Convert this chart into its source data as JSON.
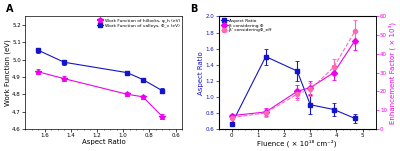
{
  "panel_a": {
    "xlabel": "Aspect Ratio",
    "ylabel": "Work Function (eV)",
    "xlim": [
      1.75,
      0.55
    ],
    "ylim": [
      4.6,
      5.25
    ],
    "xticks": [
      1.6,
      1.4,
      1.2,
      1.0,
      0.8,
      0.6
    ],
    "yticks": [
      4.6,
      4.7,
      4.8,
      4.9,
      5.0,
      5.1,
      5.2
    ],
    "hillocks_x": [
      1.65,
      1.45,
      0.97,
      0.85,
      0.7
    ],
    "hillocks_y": [
      4.93,
      4.89,
      4.8,
      4.785,
      4.67
    ],
    "hillocks_yerr": [
      0.015,
      0.015,
      0.012,
      0.01,
      0.015
    ],
    "valleys_x": [
      1.65,
      1.45,
      0.97,
      0.85,
      0.7
    ],
    "valleys_y": [
      5.055,
      4.985,
      4.925,
      4.885,
      4.82
    ],
    "valleys_yerr": [
      0.015,
      0.015,
      0.01,
      0.01,
      0.015
    ],
    "hillocks_label": "Work Function of hillocks, φ_h (eV)",
    "valleys_label": "Work Function of valleys, Φ_v (eV)",
    "hillocks_color": "#EE00EE",
    "valleys_color": "#1414C8",
    "panel_label": "A"
  },
  "panel_b": {
    "xlabel": "Fluence ( × 10¹⁸ cm⁻²)",
    "ylabel_left": "Aspect Ratio",
    "ylabel_right": "Enhancement Factor ( × 10³)",
    "xlim": [
      -0.5,
      5.5
    ],
    "ylim_left": [
      0.6,
      2.0
    ],
    "ylim_right": [
      0,
      60
    ],
    "xticks": [
      0.0,
      1.0,
      2.0,
      3.0,
      4.0,
      5.0
    ],
    "yticks_left": [
      0.6,
      0.8,
      1.0,
      1.2,
      1.4,
      1.6,
      1.8,
      2.0
    ],
    "yticks_right": [
      0,
      10,
      20,
      30,
      40,
      50,
      60
    ],
    "aspect_x": [
      0.0,
      1.3,
      2.5,
      3.0,
      3.9,
      4.7
    ],
    "aspect_y": [
      0.66,
      1.5,
      1.32,
      0.9,
      0.84,
      0.73
    ],
    "aspect_yerr": [
      0.03,
      0.1,
      0.13,
      0.12,
      0.08,
      0.06
    ],
    "beta_phi_x": [
      0.0,
      1.3,
      2.5,
      3.0,
      3.9,
      4.7
    ],
    "beta_phi_y": [
      7.0,
      9.0,
      20.0,
      22.0,
      30.0,
      47.0
    ],
    "beta_phi_yerr": [
      1.0,
      2.0,
      3.5,
      3.5,
      4.0,
      5.0
    ],
    "beta_phieff_x": [
      0.0,
      1.3,
      2.5,
      3.0,
      3.9,
      4.7
    ],
    "beta_phieff_y": [
      6.0,
      8.5,
      18.5,
      21.0,
      33.0,
      52.0
    ],
    "beta_phieff_yerr": [
      1.0,
      2.0,
      3.0,
      3.5,
      4.5,
      6.0
    ],
    "aspect_label": "Aspect Ratio",
    "beta_phi_label": "β considering Φ",
    "beta_phieff_label": "β' consideringΦ_eff",
    "aspect_color": "#1414C8",
    "beta_phi_color": "#EE00EE",
    "beta_phieff_color": "#FF69B4",
    "panel_label": "B"
  },
  "bg_color": "#FFFFFF",
  "fig_width": 4.0,
  "fig_height": 1.51,
  "dpi": 100
}
